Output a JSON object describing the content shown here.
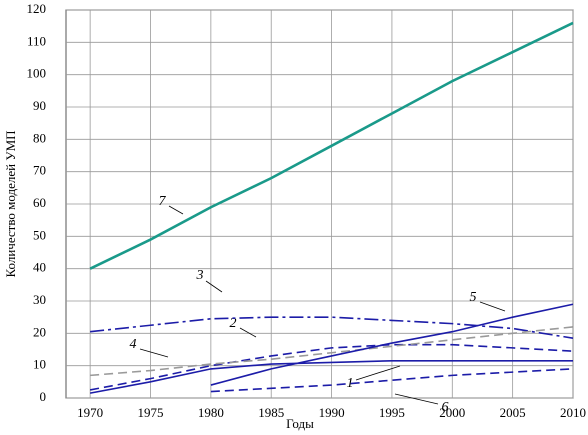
{
  "chart_data": {
    "type": "line",
    "xlabel": "Годы",
    "ylabel": "Количество моделей УМП",
    "x": [
      1970,
      1975,
      1980,
      1985,
      1990,
      1995,
      2000,
      2005,
      2010
    ],
    "xlim": [
      1968,
      2010
    ],
    "xticks": [
      1970,
      1975,
      1980,
      1985,
      1990,
      1995,
      2000,
      2005,
      2010
    ],
    "ylim": [
      0,
      120
    ],
    "yticks": [
      0,
      10,
      20,
      30,
      40,
      50,
      60,
      70,
      80,
      90,
      100,
      110,
      120
    ],
    "grid": true,
    "series": [
      {
        "name": "1",
        "color": "#1c1ca8",
        "dash": "solid",
        "values": [
          1.5,
          5,
          9,
          10.5,
          11,
          11.5,
          11.5,
          11.5,
          11.5
        ]
      },
      {
        "name": "2",
        "color": "#1c1ca8",
        "dash": "dashed",
        "values": [
          2.5,
          6,
          10,
          13,
          15.5,
          16.5,
          16.5,
          15.5,
          14.5
        ]
      },
      {
        "name": "3",
        "color": "#1c1ca8",
        "dash": "dashdot",
        "values": [
          20.5,
          22.5,
          24.5,
          25,
          25,
          24,
          23,
          21.5,
          18.5
        ]
      },
      {
        "name": "4",
        "color": "#9a9a9a",
        "dash": "dashed",
        "values": [
          7,
          8.5,
          10.5,
          12,
          14,
          16,
          18,
          20,
          22
        ]
      },
      {
        "name": "5",
        "color": "#1c1ca8",
        "dash": "solid",
        "values": [
          null,
          null,
          4,
          9,
          13,
          17,
          20.5,
          25,
          29
        ]
      },
      {
        "name": "6",
        "color": "#1c1ca8",
        "dash": "dashed",
        "values": [
          null,
          null,
          2,
          3,
          4,
          5.5,
          7,
          8,
          9
        ]
      },
      {
        "name": "7",
        "color": "#1a9a8a",
        "dash": "solid",
        "values": [
          40,
          49,
          59,
          68,
          78,
          88,
          98,
          107,
          116
        ]
      }
    ]
  }
}
